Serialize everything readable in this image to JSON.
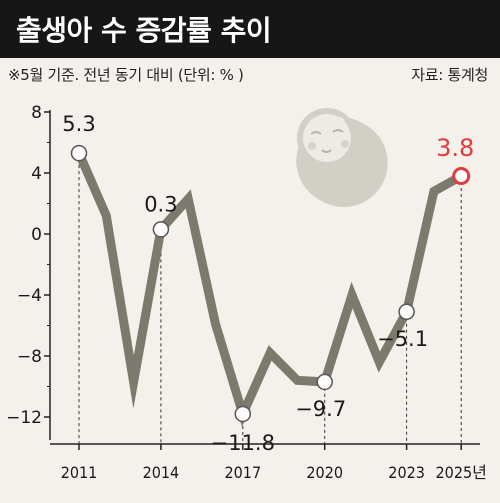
{
  "title": "출생아 수 증감률 추이",
  "subtitle": "※5월 기준. 전년 동기 대비 (단위: % )",
  "source": "자료: 통계청",
  "colors": {
    "line": "#7c7a6c",
    "highlight": "#e23b3b",
    "title_bg": "#161616",
    "background": "#f4f1ec",
    "illustration": "#d2d0c6"
  },
  "chart_data": {
    "type": "line",
    "unit": "%",
    "x": [
      2011,
      2012,
      2013,
      2014,
      2015,
      2016,
      2017,
      2018,
      2019,
      2020,
      2021,
      2022,
      2023,
      2024,
      2025
    ],
    "values": [
      5.3,
      1.2,
      -9.7,
      0.3,
      2.3,
      -5.9,
      -11.8,
      -7.8,
      -9.6,
      -9.7,
      -4.0,
      -8.4,
      -5.1,
      2.8,
      3.8
    ],
    "ylim": [
      -12,
      8
    ],
    "yticks": [
      8,
      4,
      0,
      -4,
      -8,
      -12
    ],
    "ytick_labels": [
      "8",
      "4",
      "0",
      "−4",
      "−8",
      "−12"
    ],
    "xticks": [
      2011,
      2014,
      2017,
      2020,
      2023,
      2025
    ],
    "xtick_labels": [
      "2011",
      "2014",
      "2017",
      "2020",
      "2023",
      "2025년"
    ],
    "annotated_points": [
      {
        "x": 2011,
        "label": "5.3"
      },
      {
        "x": 2014,
        "label": "0.3"
      },
      {
        "x": 2017,
        "label": "−11.8"
      },
      {
        "x": 2020,
        "label": "−9.7"
      },
      {
        "x": 2023,
        "label": "−5.1"
      },
      {
        "x": 2025,
        "label": "3.8",
        "highlight": true
      }
    ],
    "grid": false,
    "legend": "none"
  }
}
